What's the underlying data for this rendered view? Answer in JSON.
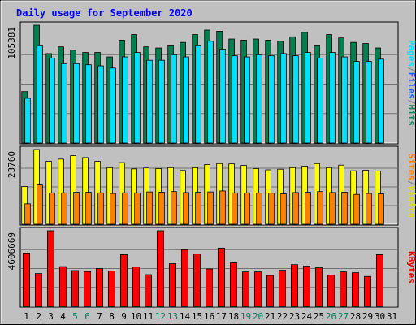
{
  "chart_data": {
    "type": "bar",
    "title": "Daily usage for September 2020",
    "categories": [
      "1",
      "2",
      "3",
      "4",
      "5",
      "6",
      "7",
      "8",
      "9",
      "10",
      "11",
      "12",
      "13",
      "14",
      "15",
      "16",
      "17",
      "18",
      "19",
      "20",
      "21",
      "22",
      "23",
      "24",
      "25",
      "26",
      "27",
      "28",
      "29",
      "30",
      "31"
    ],
    "weekend_days": [
      "5",
      "6",
      "12",
      "13",
      "19",
      "20",
      "26",
      "27"
    ],
    "panels": [
      {
        "name": "hits-files-pages",
        "ymax_label": "105381",
        "ymax": 105381,
        "legend": [
          "Pages",
          "/",
          "Files",
          "/",
          "Hits"
        ],
        "legend_colors": [
          "#00e0ff",
          "#808080",
          "#2060ff",
          "#808080",
          "#208060"
        ],
        "series": [
          {
            "name": "Hits",
            "color": "#007f50",
            "values": [
              46000,
              105381,
              80000,
              86000,
              83000,
              81000,
              81000,
              77000,
              92000,
              97000,
              86000,
              85000,
              87000,
              90000,
              97000,
              101000,
              100000,
              93000,
              92000,
              93000,
              92000,
              91000,
              95000,
              99000,
              87000,
              97000,
              94000,
              90000,
              89000,
              85000,
              0
            ]
          },
          {
            "name": "Files",
            "color": "#00e0ff",
            "values": [
              40000,
              87000,
              76000,
              71000,
              71000,
              70000,
              69000,
              67000,
              77000,
              81000,
              74000,
              74000,
              79000,
              77000,
              87000,
              91000,
              84000,
              78000,
              77000,
              79000,
              78000,
              80000,
              78000,
              81000,
              76000,
              81000,
              77000,
              73000,
              73000,
              75000,
              0
            ]
          },
          {
            "name": "Pages",
            "color": "#00b0d0",
            "values": [
              0,
              0,
              0,
              0,
              0,
              0,
              0,
              0,
              0,
              0,
              0,
              0,
              0,
              0,
              0,
              0,
              0,
              0,
              0,
              0,
              0,
              0,
              0,
              0,
              0,
              0,
              0,
              0,
              0,
              0,
              0
            ]
          }
        ]
      },
      {
        "name": "visits-sites",
        "ymax_label": "23760",
        "ymax": 23760,
        "legend": [
          "Sites",
          "/",
          "Visits"
        ],
        "legend_colors": [
          "#ff8000",
          "#808080",
          "#e0e000"
        ],
        "series": [
          {
            "name": "Visits",
            "color": "#ffff00",
            "values": [
              12000,
              23760,
              20000,
              20700,
              21800,
              21200,
              20000,
              18000,
              19600,
              17600,
              17900,
              17700,
              18000,
              17100,
              18000,
              19000,
              19300,
              19200,
              18700,
              17700,
              17300,
              17500,
              18000,
              18500,
              19300,
              18000,
              18800,
              17000,
              17200,
              16900,
              0
            ]
          },
          {
            "name": "Sites",
            "color": "#ff8000",
            "values": [
              6500,
              12500,
              10000,
              10000,
              10200,
              10200,
              10000,
              9800,
              10000,
              10000,
              10300,
              10200,
              10400,
              10100,
              10200,
              10300,
              10600,
              10000,
              10000,
              9900,
              9900,
              9700,
              10100,
              10200,
              10400,
              10100,
              10200,
              9500,
              9800,
              9700,
              0
            ]
          }
        ]
      },
      {
        "name": "kbytes",
        "ymax_label": "4606669",
        "ymax": 4606669,
        "legend": [
          "KBytes"
        ],
        "legend_colors": [
          "#e00000"
        ],
        "series": [
          {
            "name": "KBytes",
            "color": "#ff0000",
            "values": [
              3250000,
              2000000,
              4606669,
              2420000,
              2180000,
              2120000,
              2300000,
              2150000,
              3150000,
              2400000,
              1930000,
              4606669,
              2600000,
              3450000,
              3200000,
              2280000,
              3550000,
              2650000,
              2100000,
              2100000,
              1880000,
              2200000,
              2540000,
              2450000,
              2350000,
              1900000,
              2100000,
              2050000,
              1820000,
              3150000,
              0
            ]
          }
        ]
      }
    ]
  },
  "colors": {
    "frame_bg": "#c0c0c0",
    "panel_bg": "#c0c0c0",
    "title": "#0000ff",
    "tick": "#000000",
    "weekend_tick": "#00805f"
  }
}
